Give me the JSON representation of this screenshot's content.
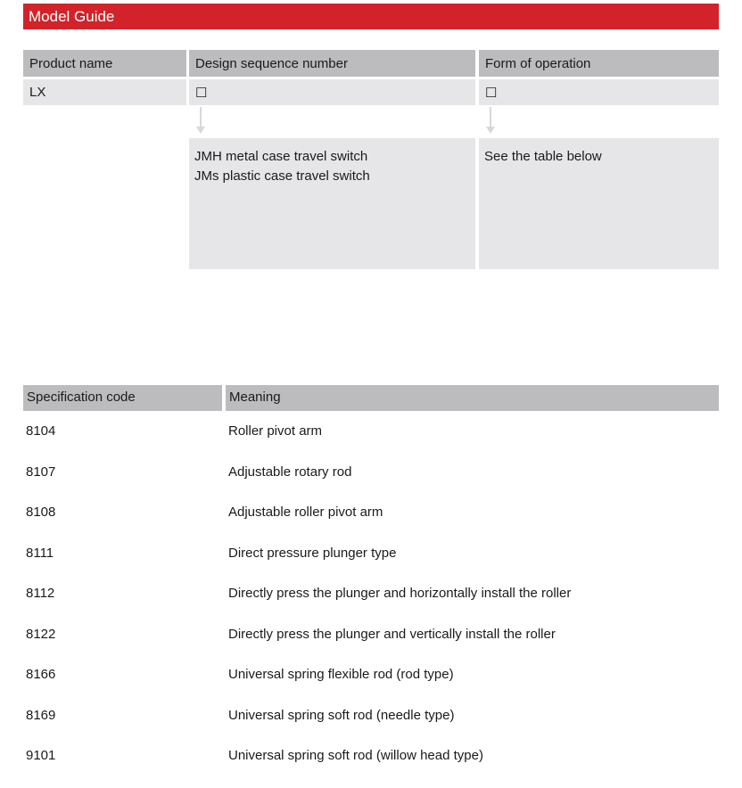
{
  "title": "Model Guide",
  "model": {
    "headers": [
      "Product name",
      "Design sequence number",
      "Form of operation"
    ],
    "values": [
      "LX",
      "☐",
      "☐"
    ],
    "design_desc": [
      "JMH metal case travel switch",
      "JMs plastic case travel switch"
    ],
    "operation_desc": "See the table below"
  },
  "spec": {
    "headers": [
      "Specification code",
      "Meaning"
    ],
    "rows": [
      {
        "code": "8104",
        "meaning": "Roller pivot arm"
      },
      {
        "code": "8107",
        "meaning": "Adjustable rotary rod"
      },
      {
        "code": "8108",
        "meaning": "Adjustable roller pivot arm"
      },
      {
        "code": "8111",
        "meaning": "Direct pressure plunger type"
      },
      {
        "code": "8112",
        "meaning": "Directly press the plunger and horizontally install the roller"
      },
      {
        "code": "8122",
        "meaning": "Directly press the plunger and vertically install the roller"
      },
      {
        "code": "8166",
        "meaning": "Universal spring flexible rod (rod type)"
      },
      {
        "code": "8169",
        "meaning": "Universal spring soft rod (needle type)"
      },
      {
        "code": "9101",
        "meaning": "Universal spring soft rod (willow head type)"
      }
    ]
  }
}
